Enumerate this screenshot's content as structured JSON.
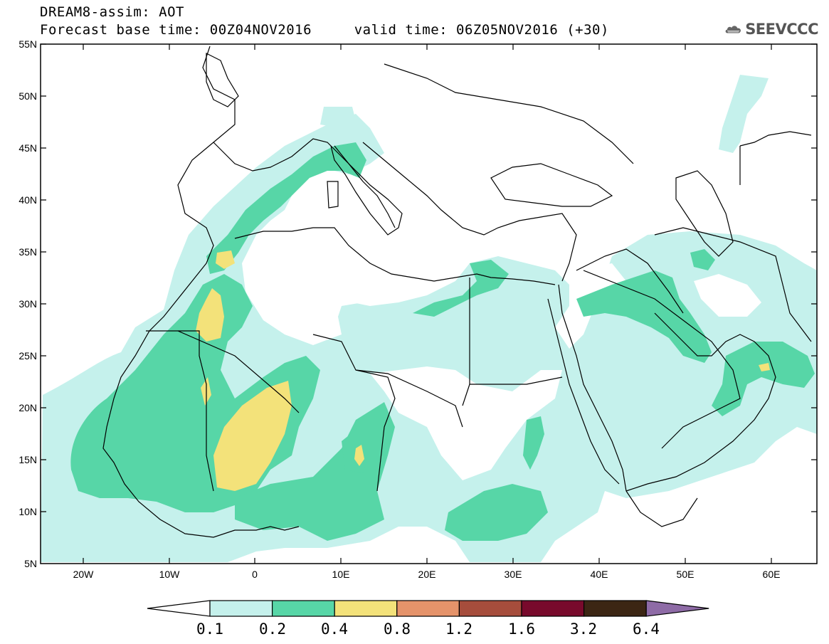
{
  "header": {
    "line1": "DREAM8-assim: AOT",
    "line2": "Forecast base time: 00Z04NOV2016     valid time: 06Z05NOV2016 (+30)"
  },
  "logo": {
    "icon": "cloud-icon",
    "text": "SEEVCCC"
  },
  "axes": {
    "lat_labels": [
      "55N",
      "50N",
      "45N",
      "40N",
      "35N",
      "30N",
      "25N",
      "20N",
      "15N",
      "10N",
      "5N"
    ],
    "lon_labels": [
      "20W",
      "10W",
      "0",
      "10E",
      "20E",
      "30E",
      "40E",
      "50E",
      "60E"
    ]
  },
  "colorbar": {
    "labels": [
      "0.1",
      "0.2",
      "0.4",
      "0.8",
      "1.2",
      "1.6",
      "3.2",
      "6.4"
    ],
    "colors": [
      "#ffffff",
      "#c5f1ec",
      "#57d6a7",
      "#f3e27a",
      "#e5936a",
      "#a64d3c",
      "#780a2c",
      "#3c2614",
      "#8e6ba6"
    ]
  }
}
